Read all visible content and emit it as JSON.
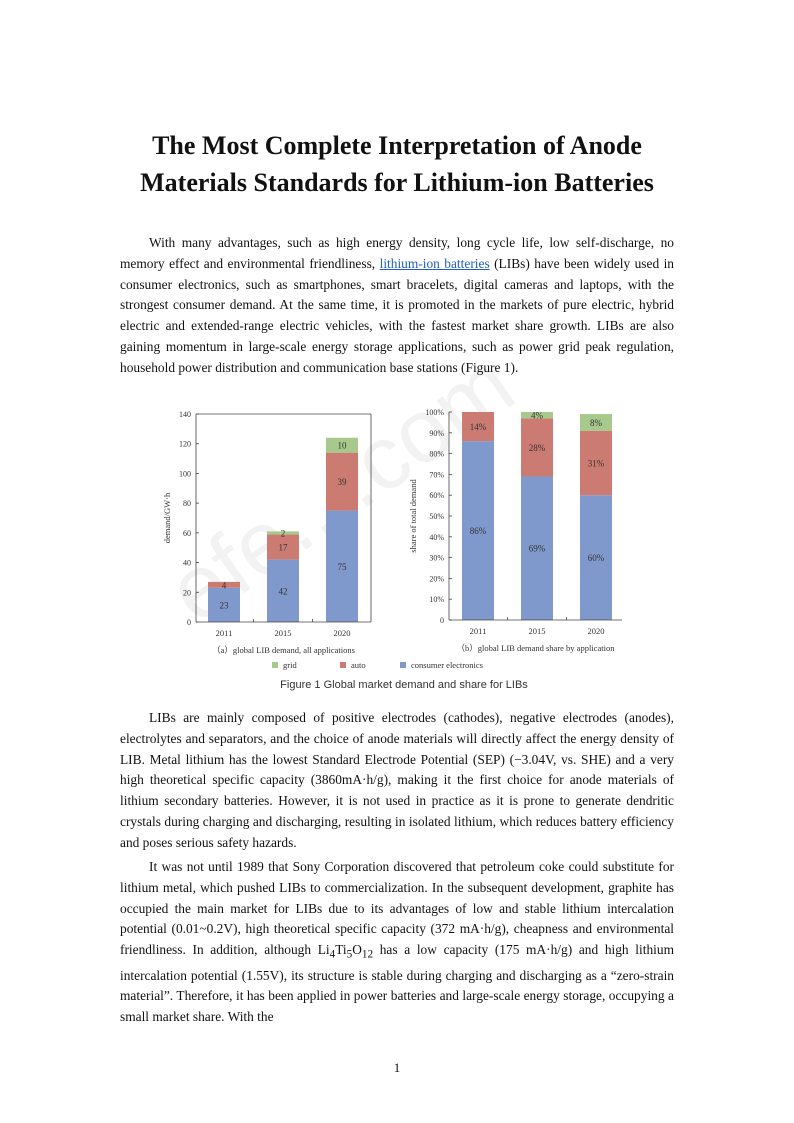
{
  "title_line1": "The Most Complete Interpretation of Anode",
  "title_line2": "Materials Standards for Lithium-ion Batteries",
  "paragraphs": {
    "p1_before": "With many advantages, such as high energy density, long cycle life, low self-discharge, no memory effect and environmental friendliness, ",
    "p1_link": "lithium-ion batteries",
    "p1_after": " (LIBs) have been widely used in consumer electronics, such as smartphones, smart bracelets, digital cameras and laptops, with the strongest consumer demand. At the same time, it is promoted in the markets of pure electric, hybrid electric and extended-range electric vehicles, with the fastest market share growth. LIBs are also gaining momentum in large-scale energy storage applications, such as power grid peak regulation, household power distribution and communication base stations (Figure 1).",
    "p2": "LIBs are mainly composed of positive electrodes (cathodes), negative electrodes (anodes), electrolytes and separators, and the choice of anode materials will directly affect the energy density of LIB. Metal lithium has the lowest Standard Electrode Potential (SEP) (−3.04V, vs. SHE) and a very high theoretical specific capacity (3860mA·h/g), making it the first choice for anode materials of lithium secondary batteries. However, it is not used in practice as it is prone to generate dendritic crystals during charging and discharging, resulting in isolated lithium, which reduces battery efficiency and poses serious safety hazards.",
    "p3_a": "It was not until 1989 that Sony Corporation discovered that petroleum coke could substitute for lithium metal, which pushed LIBs to commercialization. In the subsequent development, graphite has occupied the main market for LIBs due to its advantages of low and stable lithium intercalation potential (0.01~0.2V), high theoretical specific capacity (372 mA·h/g), cheapness and environmental friendliness. In addition, although Li",
    "p3_sub1": "4",
    "p3_b": "Ti",
    "p3_sub2": "5",
    "p3_c": "O",
    "p3_sub3": "12",
    "p3_d": " has a low capacity (175 mA·h/g) and high lithium intercalation potential (1.55V), its structure is stable during charging and discharging as a “zero-strain material”. Therefore, it has been applied in power batteries and large-scale energy storage, occupying a small market share. With the"
  },
  "figure_caption": "Figure 1 Global market demand and share for LIBs",
  "legend": [
    {
      "name": "grid",
      "color": "#a8c98c"
    },
    {
      "name": "auto",
      "color": "#cc7b72"
    },
    {
      "name": "consumer electronics",
      "color": "#8099cc"
    }
  ],
  "chart_data": [
    {
      "type": "bar",
      "stacked": true,
      "subtitle": "（a）global LIB demand, all applications",
      "ylabel": "demand/GW·h",
      "categories": [
        "2011",
        "2015",
        "2020"
      ],
      "ylim": [
        0,
        140
      ],
      "yticks": [
        "0",
        "20",
        "40",
        "60",
        "80",
        "100",
        "120",
        "140"
      ],
      "series": [
        {
          "name": "consumer electronics",
          "values": [
            23,
            42,
            75
          ],
          "labels": [
            "23",
            "42",
            "75"
          ]
        },
        {
          "name": "auto",
          "values": [
            4,
            17,
            39
          ],
          "labels": [
            "4",
            "17",
            "39"
          ]
        },
        {
          "name": "grid",
          "values": [
            0,
            2,
            10
          ],
          "labels": [
            "",
            "2",
            "10"
          ]
        }
      ]
    },
    {
      "type": "bar",
      "stacked": true,
      "subtitle": "（b）global LIB demand share by application",
      "ylabel": "share of total demand",
      "categories": [
        "2011",
        "2015",
        "2020"
      ],
      "ylim": [
        0,
        100
      ],
      "yticks": [
        "0",
        "10%",
        "20%",
        "30%",
        "40%",
        "50%",
        "60%",
        "70%",
        "80%",
        "90%",
        "100%"
      ],
      "series": [
        {
          "name": "consumer electronics",
          "values": [
            86,
            69,
            60
          ],
          "labels": [
            "86%",
            "69%",
            "60%"
          ]
        },
        {
          "name": "auto",
          "values": [
            14,
            28,
            31
          ],
          "labels": [
            "14%",
            "28%",
            "31%"
          ]
        },
        {
          "name": "grid",
          "values": [
            0,
            4,
            8
          ],
          "labels": [
            "",
            "4%",
            "8%"
          ]
        }
      ]
    }
  ],
  "page_number": "1",
  "watermark": "efe....com"
}
